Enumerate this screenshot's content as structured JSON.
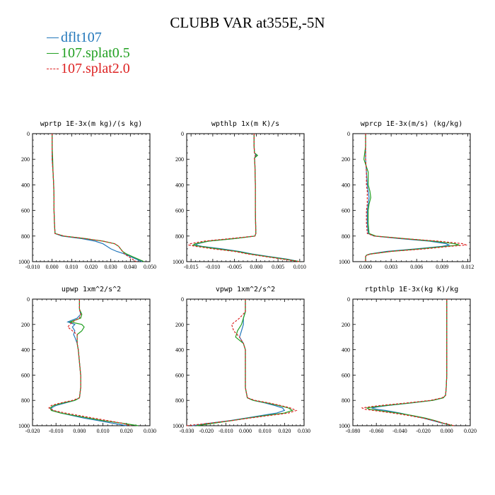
{
  "title": "CLUBB VAR at355E,-5N",
  "legend": [
    {
      "label": "dflt107",
      "color": "#2277bb",
      "dash": false
    },
    {
      "label": "107.splat0.5",
      "color": "#22a022",
      "dash": false
    },
    {
      "label": "107.splat2.0",
      "color": "#dd2222",
      "dash": true
    }
  ],
  "chart_data": [
    {
      "type": "line",
      "title": "wprtp  1E-3x(m kg)/(s kg)",
      "xlim": [
        -0.01,
        0.05
      ],
      "xticks": [
        "-0.010",
        "0.000",
        "0.010",
        "0.020",
        "0.030",
        "0.040",
        "0.050"
      ],
      "ylim": [
        0,
        1000
      ],
      "yticks": [
        "0",
        "200",
        "400",
        "600",
        "800",
        "1000"
      ],
      "y": [
        0,
        100,
        200,
        300,
        400,
        500,
        600,
        700,
        780,
        800,
        820,
        840,
        860,
        880,
        900,
        920,
        940,
        960,
        980,
        1000
      ],
      "series": [
        {
          "name": "dflt107",
          "values": [
            0,
            0,
            0,
            0.0005,
            0.0008,
            0.001,
            0.001,
            0.0012,
            0.0015,
            0.005,
            0.015,
            0.022,
            0.026,
            0.028,
            0.03,
            0.033,
            0.037,
            0.04,
            0.043,
            0.046
          ]
        },
        {
          "name": "107.splat0.5",
          "values": [
            0,
            0,
            0.0003,
            0.0005,
            0.0008,
            0.001,
            0.001,
            0.0012,
            0.0015,
            0.006,
            0.017,
            0.026,
            0.032,
            0.034,
            0.035,
            0.036,
            0.038,
            0.041,
            0.044,
            0.047
          ]
        },
        {
          "name": "107.splat2.0",
          "values": [
            0,
            0,
            0,
            0.0005,
            0.0008,
            0.001,
            0.001,
            0.0012,
            0.0015,
            0.006,
            0.017,
            0.026,
            0.032,
            0.034,
            0.035,
            0.036,
            0.037,
            0.039,
            0.041,
            0.043
          ]
        }
      ]
    },
    {
      "type": "line",
      "title": "wpthlp  1x(m K)/s",
      "xlim": [
        -0.016,
        0.011
      ],
      "xticks": [
        "-0.015",
        "-0.010",
        "-0.005",
        "0.000",
        "0.005",
        "0.010"
      ],
      "xtick_values": [
        -0.015,
        -0.01,
        -0.005,
        0.0,
        0.005,
        0.01
      ],
      "ylim": [
        0,
        1000
      ],
      "yticks": [
        "0",
        "200",
        "400",
        "600",
        "800",
        "1000"
      ],
      "y": [
        0,
        100,
        150,
        170,
        190,
        250,
        400,
        600,
        780,
        800,
        820,
        840,
        860,
        870,
        880,
        900,
        920,
        940,
        960,
        980,
        1000
      ],
      "series": [
        {
          "name": "dflt107",
          "values": [
            -0.0005,
            -0.0005,
            -0.0004,
            0.0,
            -0.0004,
            -0.0003,
            -0.0002,
            -0.0002,
            -0.0001,
            -0.0003,
            -0.005,
            -0.011,
            -0.0135,
            -0.014,
            -0.0125,
            -0.008,
            -0.004,
            -0.001,
            0.003,
            0.007,
            0.01
          ]
        },
        {
          "name": "107.splat0.5",
          "values": [
            -0.0005,
            -0.0005,
            -0.0004,
            0.0003,
            -0.0004,
            -0.0003,
            -0.0002,
            -0.0002,
            -0.0001,
            -0.0003,
            -0.005,
            -0.011,
            -0.014,
            -0.0145,
            -0.013,
            -0.009,
            -0.0045,
            -0.0015,
            0.0025,
            0.0065,
            0.01
          ]
        },
        {
          "name": "107.splat2.0",
          "values": [
            -0.0005,
            -0.0005,
            -0.0004,
            -0.0002,
            -0.0004,
            -0.0003,
            -0.0002,
            -0.0002,
            -0.0001,
            -0.0003,
            -0.006,
            -0.012,
            -0.0152,
            -0.0155,
            -0.014,
            -0.01,
            -0.005,
            -0.002,
            0.002,
            0.006,
            0.01
          ]
        }
      ]
    },
    {
      "type": "line",
      "title": "wprcp  1E-3x(m/s) (kg/kg)",
      "xlim": [
        -0.0015,
        0.0123
      ],
      "xticks": [
        "0.000",
        "0.003",
        "0.006",
        "0.009",
        "0.012"
      ],
      "xtick_values": [
        0.0,
        0.003,
        0.006,
        0.009,
        0.012
      ],
      "ylim": [
        0,
        1000
      ],
      "yticks": [
        "0",
        "200",
        "400",
        "600",
        "800",
        "1000"
      ],
      "y": [
        0,
        100,
        200,
        300,
        400,
        450,
        500,
        550,
        600,
        700,
        780,
        800,
        820,
        840,
        860,
        870,
        880,
        900,
        920,
        940,
        950,
        960,
        980,
        1000
      ],
      "series": [
        {
          "name": "dflt107",
          "values": [
            0,
            0,
            0,
            0.0001,
            0.0002,
            0.0003,
            0.0004,
            0.0003,
            0.0002,
            0.0002,
            0.0003,
            0.001,
            0.004,
            0.0075,
            0.0095,
            0.0098,
            0.009,
            0.006,
            0.0025,
            0.0005,
            0.0001,
            0,
            0,
            0
          ]
        },
        {
          "name": "107.splat0.5",
          "values": [
            0,
            0,
            -0.0002,
            0.0003,
            0.0003,
            0.0005,
            0.0006,
            0.0004,
            0.0003,
            0.0003,
            0.0004,
            0.0012,
            0.0045,
            0.008,
            0.0105,
            0.011,
            0.0095,
            0.0065,
            0.003,
            0.0006,
            0.0001,
            0,
            0,
            0
          ]
        },
        {
          "name": "107.splat2.0",
          "values": [
            0,
            0,
            0,
            0.0001,
            0.0001,
            0.0002,
            0.0002,
            0.0002,
            0.0001,
            0.0001,
            0.0002,
            0.001,
            0.0045,
            0.0085,
            0.0115,
            0.0118,
            0.01,
            0.007,
            0.003,
            0.0007,
            0.0001,
            0,
            0,
            0
          ]
        }
      ]
    },
    {
      "type": "line",
      "title": "upwp  1xm^2/s^2",
      "xlim": [
        -0.02,
        0.03
      ],
      "xticks": [
        "-0.020",
        "-0.010",
        "0.000",
        "0.010",
        "0.020",
        "0.030"
      ],
      "xtick_values": [
        -0.02,
        -0.01,
        0.0,
        0.01,
        0.02,
        0.03
      ],
      "ylim": [
        0,
        1000
      ],
      "yticks": [
        "0",
        "200",
        "400",
        "600",
        "800",
        "1000"
      ],
      "y": [
        0,
        80,
        120,
        150,
        180,
        200,
        220,
        250,
        280,
        300,
        350,
        400,
        500,
        600,
        700,
        780,
        800,
        820,
        840,
        860,
        880,
        900,
        920,
        940,
        960,
        980,
        1000
      ],
      "series": [
        {
          "name": "dflt107",
          "values": [
            0,
            0,
            0.0005,
            -0.001,
            -0.005,
            -0.002,
            -0.003,
            -0.002,
            -0.0025,
            -0.002,
            -0.001,
            -0.0005,
            0,
            0.0005,
            0.0005,
            0,
            -0.002,
            -0.006,
            -0.01,
            -0.012,
            -0.0115,
            -0.008,
            -0.003,
            0.002,
            0.008,
            0.014,
            0.02
          ]
        },
        {
          "name": "107.splat0.5",
          "values": [
            0,
            0,
            0.001,
            0.0005,
            -0.004,
            0.001,
            0.002,
            0.001,
            -0.001,
            -0.001,
            -0.001,
            -0.0005,
            0,
            0.0005,
            0.0005,
            0,
            -0.002,
            -0.007,
            -0.011,
            -0.0125,
            -0.012,
            -0.008,
            -0.002,
            0.004,
            0.01,
            0.018,
            0.025
          ]
        },
        {
          "name": "107.splat2.0",
          "values": [
            0,
            0,
            0.0005,
            0,
            -0.003,
            -0.004,
            -0.005,
            -0.003,
            -0.001,
            -0.001,
            -0.001,
            -0.0005,
            0,
            0.0005,
            0.0005,
            0,
            -0.003,
            -0.008,
            -0.012,
            -0.013,
            -0.011,
            -0.006,
            0,
            0.006,
            0.012,
            0.018,
            0.022
          ]
        }
      ]
    },
    {
      "type": "line",
      "title": "vpwp  1xm^2/s^2",
      "xlim": [
        -0.03,
        0.03
      ],
      "xticks": [
        "-0.030",
        "-0.020",
        "-0.010",
        "0.000",
        "0.010",
        "0.020",
        "0.030"
      ],
      "xtick_values": [
        -0.03,
        -0.02,
        -0.01,
        0.0,
        0.01,
        0.02,
        0.03
      ],
      "ylim": [
        0,
        1000
      ],
      "yticks": [
        "0",
        "200",
        "400",
        "600",
        "800",
        "1000"
      ],
      "y": [
        0,
        100,
        150,
        200,
        250,
        300,
        350,
        400,
        500,
        600,
        700,
        780,
        800,
        820,
        840,
        860,
        880,
        900,
        920,
        940,
        960,
        980,
        1000
      ],
      "series": [
        {
          "name": "dflt107",
          "values": [
            0,
            0,
            -0.001,
            -0.001,
            -0.002,
            -0.003,
            -0.001,
            0,
            0,
            0,
            0,
            0.001,
            0.004,
            0.01,
            0.015,
            0.019,
            0.02,
            0.016,
            0.008,
            0,
            -0.008,
            -0.018,
            -0.027
          ]
        },
        {
          "name": "107.splat0.5",
          "values": [
            0,
            0,
            -0.001,
            -0.002,
            -0.004,
            -0.005,
            -0.001,
            0,
            0,
            0,
            0,
            0.001,
            0.004,
            0.011,
            0.017,
            0.022,
            0.024,
            0.02,
            0.01,
            0.001,
            -0.007,
            -0.016,
            -0.025
          ]
        },
        {
          "name": "107.splat2.0",
          "values": [
            0,
            0,
            -0.003,
            -0.007,
            -0.006,
            -0.003,
            -0.001,
            0,
            0,
            0,
            0,
            0.001,
            0.005,
            0.012,
            0.018,
            0.023,
            0.026,
            0.022,
            0.012,
            0.002,
            -0.007,
            -0.018,
            -0.03
          ]
        }
      ]
    },
    {
      "type": "line",
      "title": "rtpthlp  1E-3x(kg K)/kg",
      "xlim": [
        -0.08,
        0.02
      ],
      "xticks": [
        "-0.080",
        "-0.060",
        "-0.040",
        "-0.020",
        "0.000",
        "0.020"
      ],
      "xtick_values": [
        -0.08,
        -0.06,
        -0.04,
        -0.02,
        0.0,
        0.02
      ],
      "ylim": [
        0,
        1000
      ],
      "yticks": [
        "0",
        "200",
        "400",
        "600",
        "800",
        "1000"
      ],
      "y": [
        0,
        100,
        200,
        400,
        600,
        700,
        760,
        780,
        800,
        820,
        840,
        850,
        860,
        870,
        880,
        900,
        920,
        940,
        960,
        980,
        1000
      ],
      "series": [
        {
          "name": "dflt107",
          "values": [
            0,
            0,
            0,
            0,
            0,
            -0.0005,
            -0.001,
            -0.003,
            -0.012,
            -0.03,
            -0.05,
            -0.058,
            -0.064,
            -0.06,
            -0.052,
            -0.04,
            -0.03,
            -0.02,
            -0.012,
            -0.004,
            0.005
          ]
        },
        {
          "name": "107.splat0.5",
          "values": [
            0,
            0,
            0,
            0,
            0,
            -0.0005,
            -0.001,
            -0.003,
            -0.012,
            -0.031,
            -0.052,
            -0.061,
            -0.068,
            -0.066,
            -0.058,
            -0.042,
            -0.029,
            -0.018,
            -0.01,
            -0.003,
            0.005
          ]
        },
        {
          "name": "107.splat2.0",
          "values": [
            0,
            0,
            0,
            0,
            0,
            -0.0005,
            -0.001,
            -0.004,
            -0.014,
            -0.034,
            -0.056,
            -0.065,
            -0.072,
            -0.07,
            -0.062,
            -0.046,
            -0.032,
            -0.02,
            -0.011,
            -0.003,
            0.006
          ]
        }
      ]
    }
  ]
}
